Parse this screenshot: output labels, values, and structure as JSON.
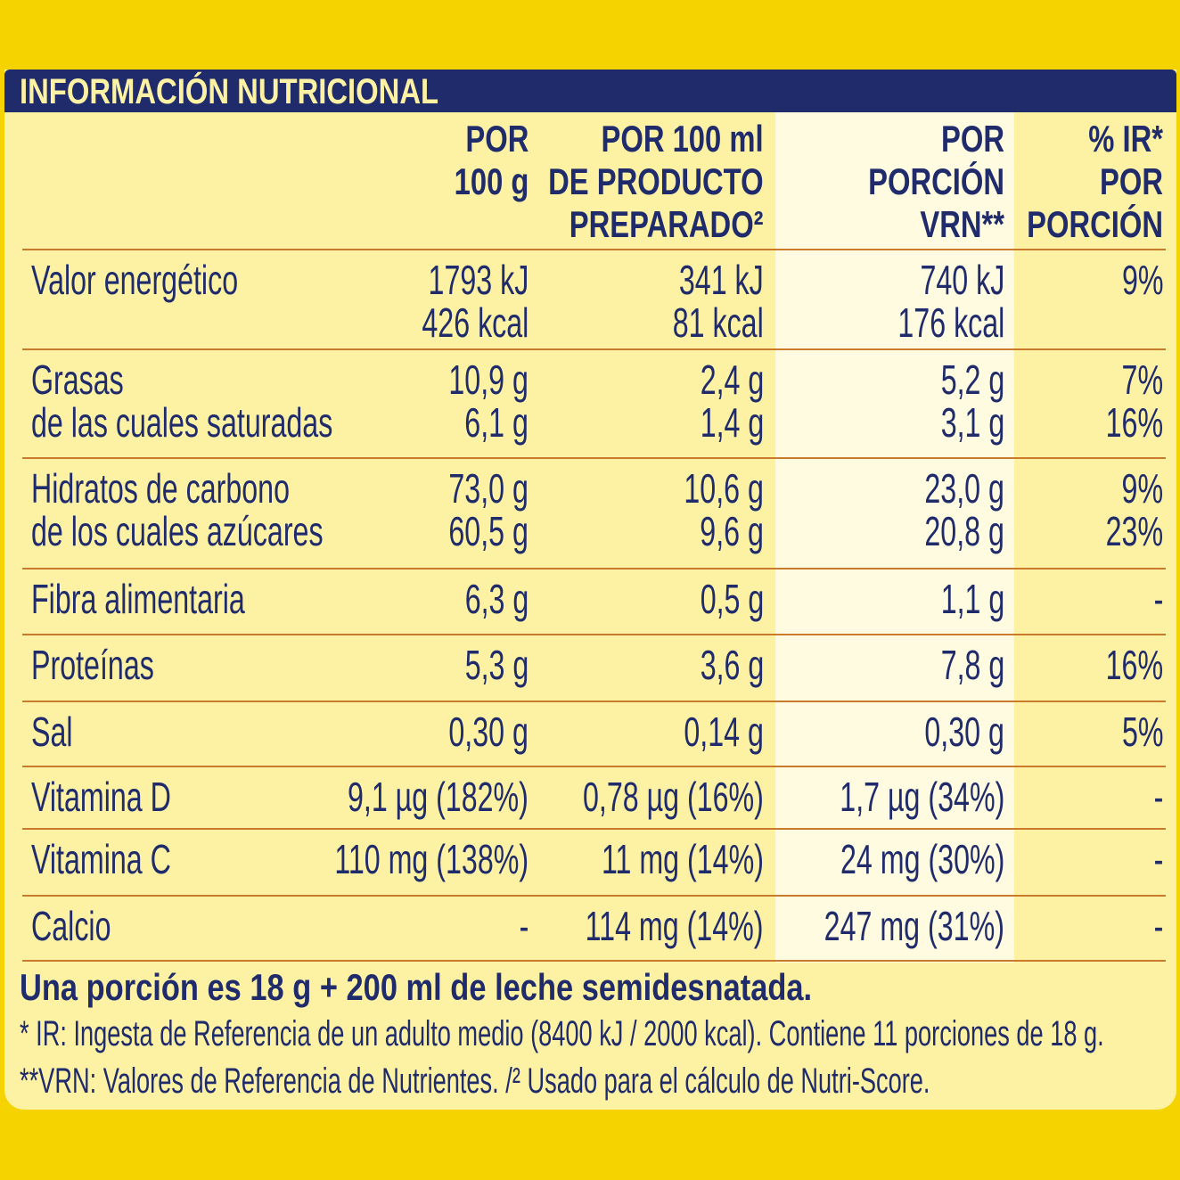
{
  "header": {
    "title": "INFORMACIÓN NUTRICIONAL"
  },
  "table": {
    "columns": [
      [
        "POR",
        "100 g"
      ],
      [
        "POR 100 ml",
        "DE PRODUCTO",
        "PREPARADO²"
      ],
      [
        "POR",
        "PORCIÓN",
        "VRN**"
      ],
      [
        "% IR*",
        "POR",
        "PORCIÓN"
      ]
    ],
    "rows": [
      {
        "label": [
          "Valor energético"
        ],
        "cells": [
          [
            "1793 kJ",
            "426 kcal"
          ],
          [
            "341 kJ",
            "81 kcal"
          ],
          [
            "740 kJ",
            "176 kcal"
          ],
          [
            "9%"
          ]
        ]
      },
      {
        "label": [
          "Grasas",
          "de las cuales saturadas"
        ],
        "cells": [
          [
            "10,9 g",
            "6,1 g"
          ],
          [
            "2,4 g",
            "1,4 g"
          ],
          [
            "5,2 g",
            "3,1 g"
          ],
          [
            "7%",
            "16%"
          ]
        ]
      },
      {
        "label": [
          "Hidratos de carbono",
          "de los cuales azúcares"
        ],
        "cells": [
          [
            "73,0 g",
            "60,5 g"
          ],
          [
            "10,6 g",
            "9,6 g"
          ],
          [
            "23,0 g",
            "20,8 g"
          ],
          [
            "9%",
            "23%"
          ]
        ]
      },
      {
        "label": [
          "Fibra alimentaria"
        ],
        "cells": [
          [
            "6,3 g"
          ],
          [
            "0,5 g"
          ],
          [
            "1,1 g"
          ],
          [
            "-"
          ]
        ]
      },
      {
        "label": [
          "Proteínas"
        ],
        "cells": [
          [
            "5,3 g"
          ],
          [
            "3,6 g"
          ],
          [
            "7,8 g"
          ],
          [
            "16%"
          ]
        ]
      },
      {
        "label": [
          "Sal"
        ],
        "cells": [
          [
            "0,30 g"
          ],
          [
            "0,14 g"
          ],
          [
            "0,30 g"
          ],
          [
            "5%"
          ]
        ]
      },
      {
        "label": [
          "Vitamina D"
        ],
        "cells": [
          [
            "9,1 µg (182%)"
          ],
          [
            "0,78 µg (16%)"
          ],
          [
            "1,7 µg (34%)"
          ],
          [
            "-"
          ]
        ]
      },
      {
        "label": [
          "Vitamina C"
        ],
        "cells": [
          [
            "110 mg (138%)"
          ],
          [
            "11 mg (14%)"
          ],
          [
            "24 mg (30%)"
          ],
          [
            "-"
          ]
        ]
      },
      {
        "label": [
          "Calcio"
        ],
        "cells": [
          [
            "-"
          ],
          [
            "114 mg (14%)"
          ],
          [
            "247 mg (31%)"
          ],
          [
            "-"
          ]
        ]
      }
    ]
  },
  "footer": {
    "serving": "Una porción es 18 g + 200 ml de leche semidesnatada.",
    "notes": [
      "* IR: Ingesta de Referencia de un adulto medio (8400 kJ / 2000 kcal). Contiene 11 porciones de 18 g.",
      "**VRN: Valores de Referencia de Nutrientes. /² Usado para el cálculo de Nutri-Score."
    ]
  }
}
